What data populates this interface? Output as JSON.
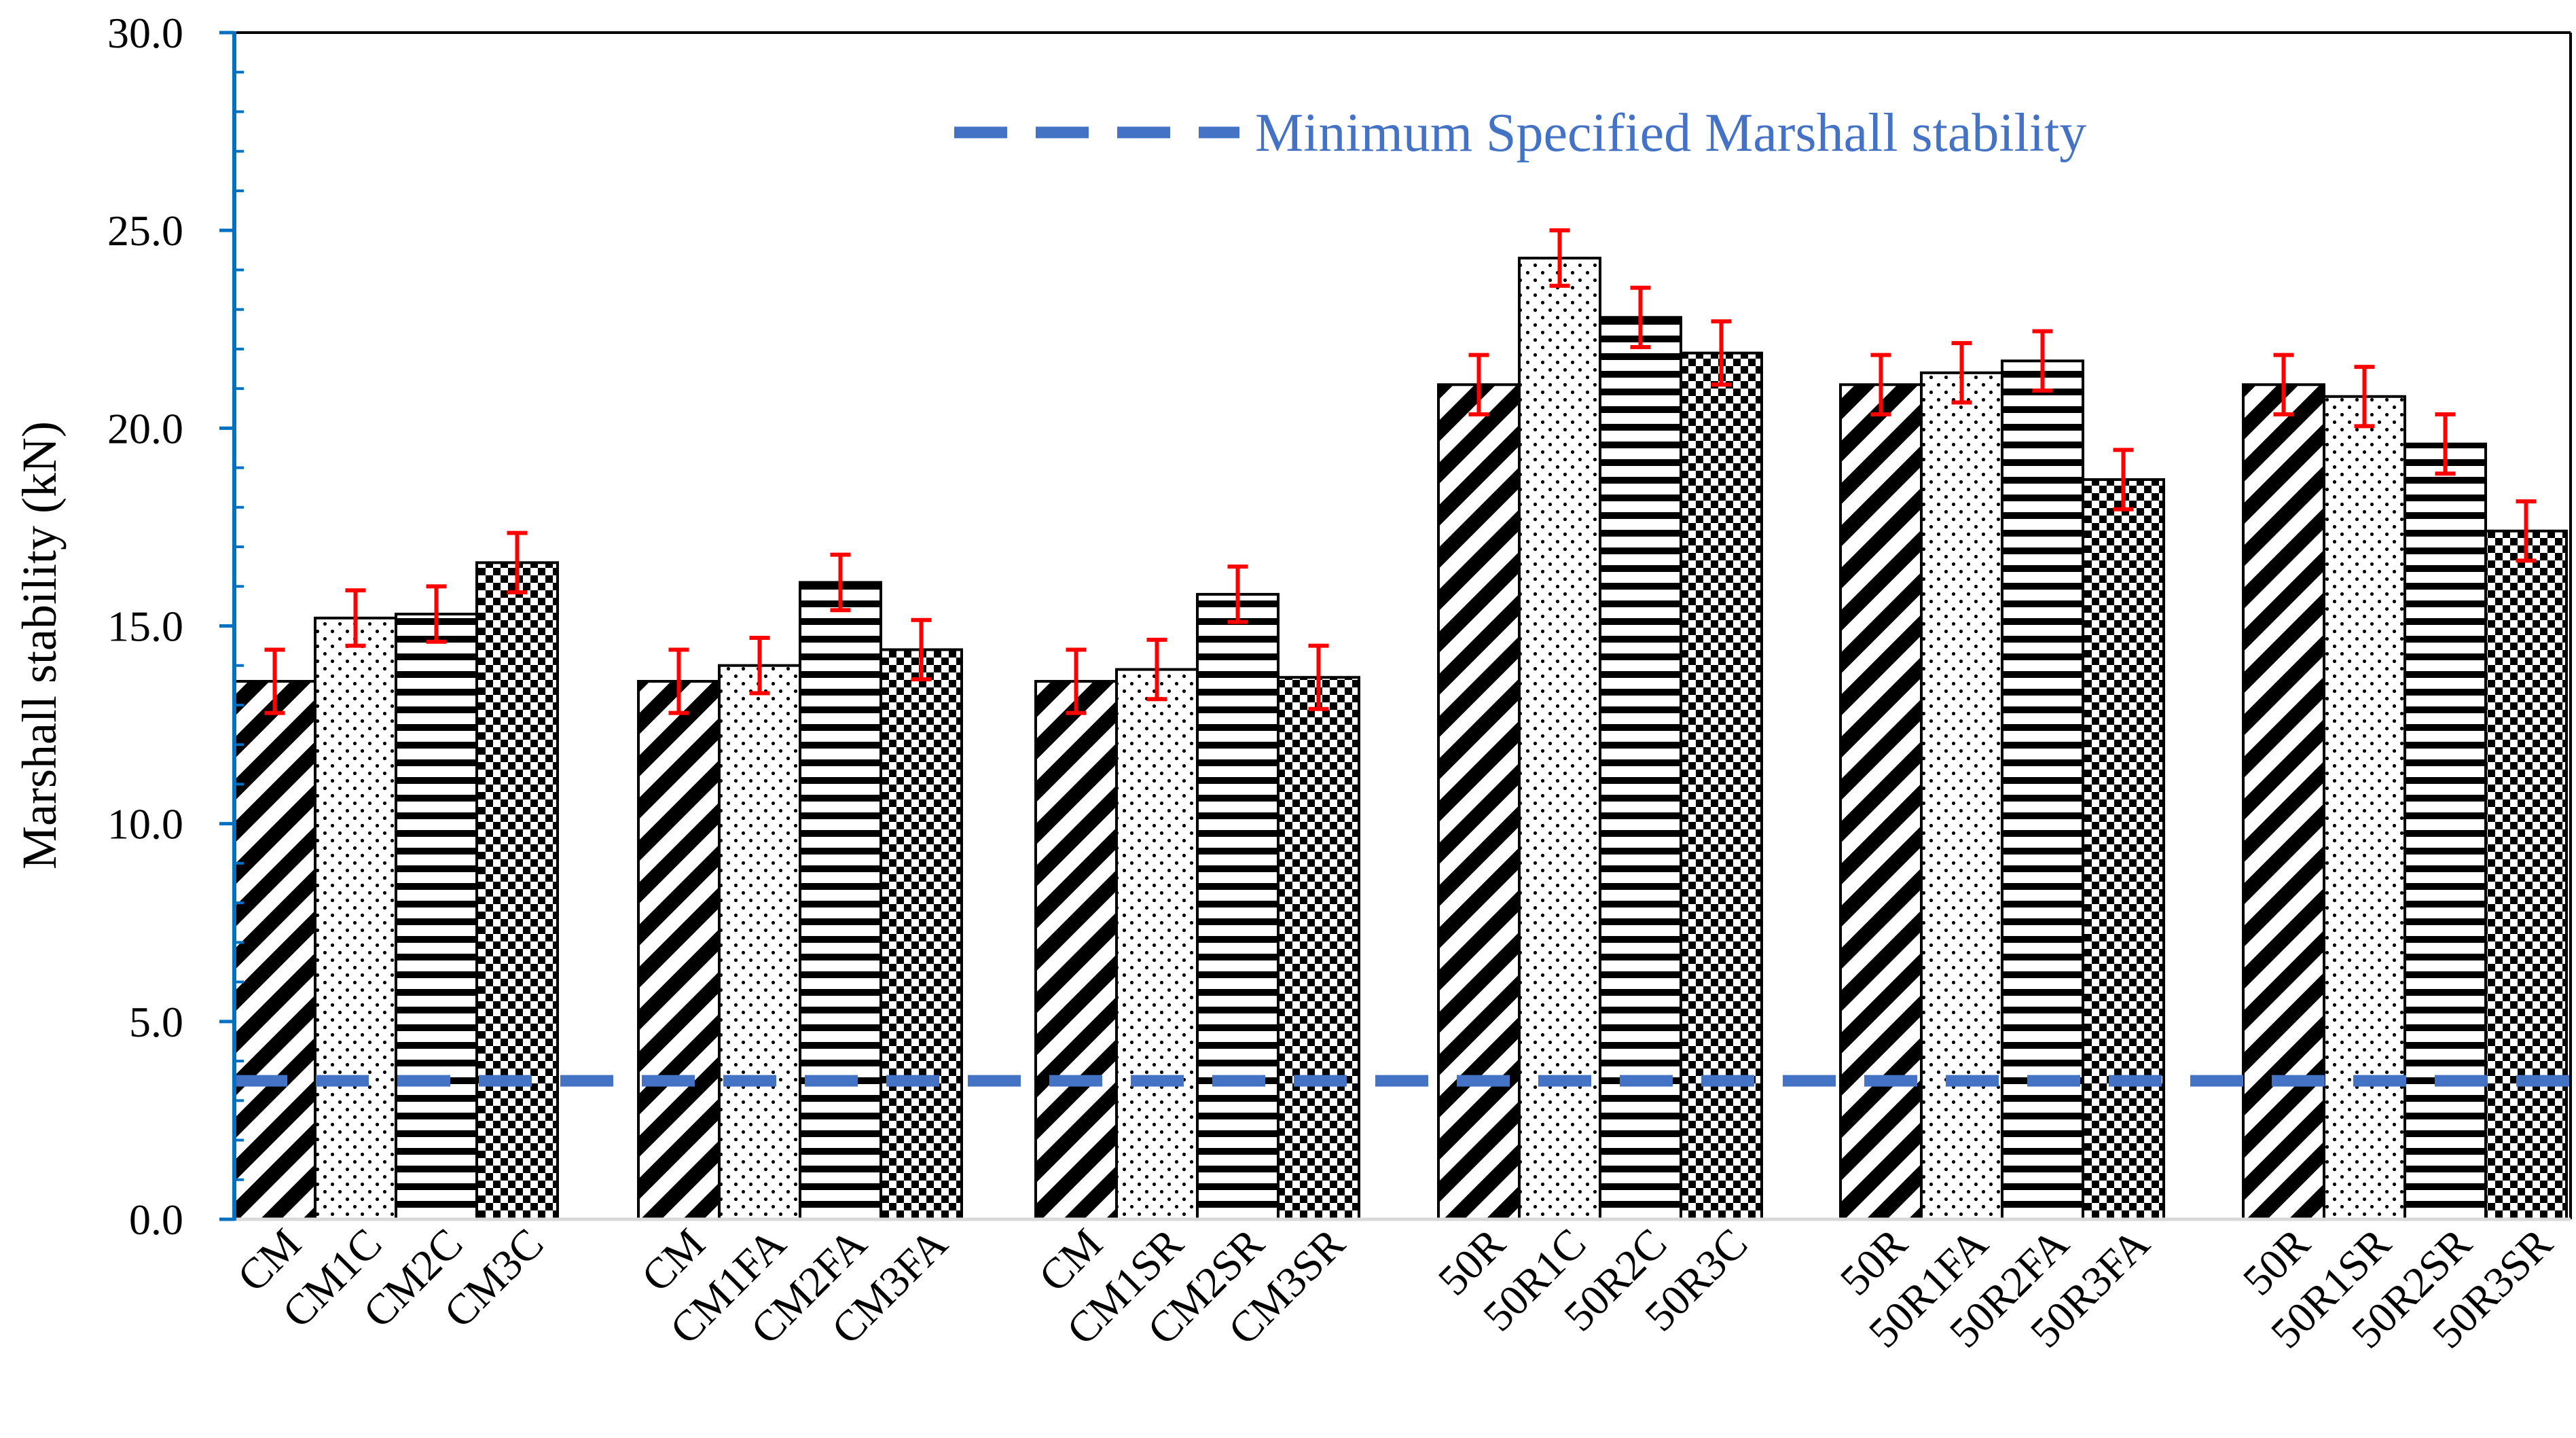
{
  "chart_data": {
    "type": "bar",
    "title": "",
    "xlabel": "",
    "ylabel": "Marshall stability (kN)",
    "ylim": [
      0,
      30
    ],
    "yticks": [
      "0.0",
      "5.0",
      "10.0",
      "15.0",
      "20.0",
      "25.0",
      "30.0"
    ],
    "grid": false,
    "groups": [
      {
        "bars": [
          {
            "label": "CM",
            "value": 13.6,
            "error": 0.8,
            "pattern": "diagonal"
          },
          {
            "label": "CM1C",
            "value": 15.2,
            "error": 0.7,
            "pattern": "dots"
          },
          {
            "label": "CM2C",
            "value": 15.3,
            "error": 0.7,
            "pattern": "horizontal"
          },
          {
            "label": "CM3C",
            "value": 16.6,
            "error": 0.75,
            "pattern": "checker"
          }
        ]
      },
      {
        "bars": [
          {
            "label": "CM",
            "value": 13.6,
            "error": 0.8,
            "pattern": "diagonal"
          },
          {
            "label": "CM1FA",
            "value": 14.0,
            "error": 0.7,
            "pattern": "dots"
          },
          {
            "label": "CM2FA",
            "value": 16.1,
            "error": 0.7,
            "pattern": "horizontal"
          },
          {
            "label": "CM3FA",
            "value": 14.4,
            "error": 0.75,
            "pattern": "checker"
          }
        ]
      },
      {
        "bars": [
          {
            "label": "CM",
            "value": 13.6,
            "error": 0.8,
            "pattern": "diagonal"
          },
          {
            "label": "CM1SR",
            "value": 13.9,
            "error": 0.75,
            "pattern": "dots"
          },
          {
            "label": "CM2SR",
            "value": 15.8,
            "error": 0.7,
            "pattern": "horizontal"
          },
          {
            "label": "CM3SR",
            "value": 13.7,
            "error": 0.8,
            "pattern": "checker"
          }
        ]
      },
      {
        "bars": [
          {
            "label": "50R",
            "value": 21.1,
            "error": 0.75,
            "pattern": "diagonal"
          },
          {
            "label": "50R1C",
            "value": 24.3,
            "error": 0.7,
            "pattern": "dots"
          },
          {
            "label": "50R2C",
            "value": 22.8,
            "error": 0.75,
            "pattern": "horizontal"
          },
          {
            "label": "50R3C",
            "value": 21.9,
            "error": 0.8,
            "pattern": "checker"
          }
        ]
      },
      {
        "bars": [
          {
            "label": "50R",
            "value": 21.1,
            "error": 0.75,
            "pattern": "diagonal"
          },
          {
            "label": "50R1FA",
            "value": 21.4,
            "error": 0.75,
            "pattern": "dots"
          },
          {
            "label": "50R2FA",
            "value": 21.7,
            "error": 0.75,
            "pattern": "horizontal"
          },
          {
            "label": "50R3FA",
            "value": 18.7,
            "error": 0.75,
            "pattern": "checker"
          }
        ]
      },
      {
        "bars": [
          {
            "label": "50R",
            "value": 21.1,
            "error": 0.75,
            "pattern": "diagonal"
          },
          {
            "label": "50R1SR",
            "value": 20.8,
            "error": 0.75,
            "pattern": "dots"
          },
          {
            "label": "50R2SR",
            "value": 19.6,
            "error": 0.75,
            "pattern": "horizontal"
          },
          {
            "label": "50R3SR",
            "value": 17.4,
            "error": 0.75,
            "pattern": "checker"
          }
        ]
      }
    ],
    "reference_line": {
      "name": "Minimum Specified Marshall stability",
      "value": 3.5,
      "style": "dashed",
      "color": "#4472C4"
    },
    "legend": {
      "position": "top-center"
    },
    "colors": {
      "bar_outline": "#000000",
      "error_bar": "#FF0000",
      "axis": "#0070C0",
      "axis_bottom": "#D9D9D9"
    }
  }
}
